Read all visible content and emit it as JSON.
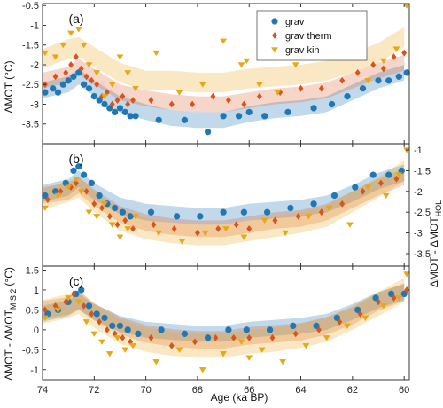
{
  "figure": {
    "xlabel_main": "Age (ka BP)",
    "ylabel_top": "ΔMOT (°C)",
    "ylabel_mid_main": "ΔMOT - ΔMOT",
    "ylabel_mid_sub": "HOL",
    "ylabel_bot_main": "ΔMOT - ΔMOT",
    "ylabel_bot_sub": "MIS 2",
    "ylabel_bot_unit": "(°C)"
  },
  "legend": [
    {
      "name": "grav",
      "color": "#1f77b4",
      "marker": "star"
    },
    {
      "name": "grav therm",
      "color": "#d9541a",
      "marker": "diamond"
    },
    {
      "name": "grav kin",
      "color": "#e6a817",
      "marker": "triangle-down"
    }
  ],
  "chart_data": [
    {
      "type": "scatter",
      "panel_label": "(a)",
      "x_axis": {
        "range": [
          74,
          59.8
        ],
        "reversed": true,
        "ticks": [
          74,
          72,
          70,
          68,
          66,
          64,
          62,
          60
        ]
      },
      "y_axis": {
        "range": [
          -4.0,
          -0.45
        ],
        "side": "left",
        "ticks": [
          -0.5,
          -1,
          -1.5,
          -2,
          -2.5,
          -3,
          -3.5
        ],
        "tick_labels": [
          "-0.5",
          "-1",
          "-1.5",
          "-2",
          "-2.5",
          "-3",
          "-3.5"
        ]
      },
      "series": [
        {
          "name": "grav",
          "color": "#1f77b4",
          "band_x": [
            74,
            73,
            72.6,
            72,
            71,
            70,
            69,
            68,
            67,
            66,
            65,
            64,
            63,
            62,
            61,
            60
          ],
          "band_center": [
            -2.65,
            -2.5,
            -2.3,
            -2.6,
            -3.0,
            -3.2,
            -3.35,
            -3.4,
            -3.4,
            -3.25,
            -3.15,
            -3.1,
            -3.0,
            -2.7,
            -2.4,
            -2.2
          ],
          "band_half": 0.2,
          "points_x": [
            73.9,
            73.6,
            73.4,
            73.2,
            73.0,
            72.8,
            72.6,
            72.4,
            72.2,
            72.0,
            71.8,
            71.6,
            71.4,
            71.2,
            71.0,
            70.8,
            70.6,
            70.4,
            69.5,
            68.5,
            67.6,
            67.0,
            66.4,
            66.0,
            65.4,
            64.5,
            63.5,
            62.8,
            62.2,
            61.6,
            61.0,
            60.6,
            60.2,
            59.9
          ],
          "points_y": [
            -2.7,
            -2.6,
            -2.7,
            -2.5,
            -2.4,
            -2.3,
            -2.2,
            -2.5,
            -2.6,
            -2.8,
            -2.9,
            -3.0,
            -3.1,
            -3.2,
            -3.1,
            -3.2,
            -3.3,
            -3.3,
            -3.4,
            -3.4,
            -3.7,
            -3.3,
            -3.3,
            -3.2,
            -3.3,
            -3.2,
            -3.1,
            -3.0,
            -2.8,
            -2.6,
            -2.4,
            -2.4,
            -2.3,
            -2.2
          ]
        },
        {
          "name": "grav therm",
          "color": "#d9541a",
          "band_x": [
            74,
            73,
            72.6,
            72,
            71,
            70,
            69,
            68,
            67,
            66,
            65,
            64,
            63,
            62,
            61,
            60
          ],
          "band_center": [
            -2.4,
            -2.25,
            -2.05,
            -2.3,
            -2.7,
            -2.85,
            -2.95,
            -3.0,
            -3.0,
            -2.9,
            -2.8,
            -2.75,
            -2.65,
            -2.4,
            -2.15,
            -1.95
          ],
          "band_half": 0.2,
          "points_x": [
            73.9,
            73.5,
            73.1,
            72.9,
            72.7,
            72.5,
            72.3,
            72.1,
            71.9,
            71.7,
            71.5,
            71.3,
            71.1,
            70.9,
            70.7,
            70.5,
            69.8,
            69.0,
            68.2,
            67.4,
            66.8,
            66.2,
            65.6,
            64.8,
            64.0,
            63.2,
            62.4,
            61.8,
            61.2,
            60.8,
            60.4,
            60.0
          ],
          "points_y": [
            -2.5,
            -2.3,
            -2.2,
            -2.0,
            -1.8,
            -2.1,
            -2.3,
            -2.4,
            -2.5,
            -2.8,
            -2.7,
            -3.0,
            -2.9,
            -2.8,
            -3.0,
            -2.9,
            -2.9,
            -3.0,
            -3.0,
            -2.8,
            -2.9,
            -3.0,
            -2.8,
            -2.7,
            -2.6,
            -2.6,
            -2.4,
            -2.2,
            -2.0,
            -2.1,
            -1.8,
            -1.7
          ]
        },
        {
          "name": "grav kin",
          "color": "#e6a817",
          "band_x": [
            74,
            73,
            72.6,
            72,
            71,
            70,
            69,
            68,
            67,
            66,
            65,
            64,
            63,
            62,
            61,
            60
          ],
          "band_center": [
            -1.85,
            -1.6,
            -1.55,
            -1.8,
            -2.2,
            -2.4,
            -2.4,
            -2.45,
            -2.45,
            -2.35,
            -2.3,
            -2.25,
            -2.15,
            -1.95,
            -1.7,
            -1.3
          ],
          "band_half": 0.25,
          "points_x": [
            73.9,
            73.5,
            73.2,
            72.9,
            72.6,
            72.4,
            72.2,
            71.9,
            71.6,
            71.3,
            71.0,
            70.7,
            70.4,
            69.6,
            68.7,
            67.8,
            67.0,
            66.3,
            66.1,
            65.6,
            64.9,
            64.2,
            63.4,
            62.7,
            62.0,
            61.4,
            60.8,
            60.3,
            59.9
          ],
          "points_y": [
            -1.7,
            -1.8,
            -1.5,
            -1.2,
            -1.1,
            -1.5,
            -2.0,
            -2.2,
            -2.8,
            -2.5,
            -1.8,
            -2.2,
            -2.6,
            -1.7,
            -2.7,
            -2.5,
            -1.4,
            -2.0,
            -1.9,
            -2.5,
            -2.7,
            -2.0,
            -1.7,
            -1.4,
            -1.6,
            -2.4,
            -1.9,
            -1.6,
            -0.5
          ]
        }
      ]
    },
    {
      "type": "scatter",
      "panel_label": "(b)",
      "x_axis": {
        "range": [
          74,
          59.8
        ],
        "reversed": true,
        "ticks": [
          74,
          72,
          70,
          68,
          66,
          64,
          62,
          60
        ]
      },
      "y_axis": {
        "range": [
          -3.8,
          -0.85
        ],
        "side": "right",
        "ticks": [
          -1,
          -1.5,
          -2,
          -2.5,
          -3,
          -3.5
        ],
        "tick_labels": [
          "-1",
          "-1.5",
          "-2",
          "-2.5",
          "-3",
          "-3.5"
        ]
      },
      "series": [
        {
          "name": "grav",
          "color": "#1f77b4",
          "band_x": [
            74,
            73,
            72.6,
            72,
            71,
            70,
            69,
            68,
            67,
            66,
            65,
            64,
            63,
            62,
            61,
            60
          ],
          "band_center": [
            -2.05,
            -1.9,
            -1.7,
            -2.0,
            -2.35,
            -2.5,
            -2.55,
            -2.6,
            -2.6,
            -2.5,
            -2.45,
            -2.4,
            -2.3,
            -2.05,
            -1.75,
            -1.55
          ],
          "band_half": 0.2,
          "points_x": [
            73.9,
            73.5,
            73.1,
            72.8,
            72.6,
            72.4,
            72.1,
            71.8,
            71.5,
            71.2,
            70.9,
            70.6,
            69.8,
            68.8,
            67.9,
            67.0,
            66.2,
            65.3,
            64.4,
            63.5,
            62.7,
            61.9,
            61.2,
            60.6,
            60.1
          ],
          "points_y": [
            -2.1,
            -2.0,
            -1.8,
            -1.5,
            -1.4,
            -1.6,
            -1.8,
            -2.1,
            -2.3,
            -2.4,
            -2.5,
            -2.6,
            -2.5,
            -2.6,
            -2.6,
            -2.5,
            -2.5,
            -2.5,
            -2.4,
            -2.3,
            -2.1,
            -1.9,
            -1.6,
            -1.6,
            -1.5
          ]
        },
        {
          "name": "grav therm",
          "color": "#d9541a",
          "band_x": [
            74,
            73,
            72.6,
            72,
            71,
            70,
            69,
            68,
            67,
            66,
            65,
            64,
            63,
            62,
            61,
            60
          ],
          "band_center": [
            -2.1,
            -2.0,
            -1.85,
            -2.15,
            -2.55,
            -2.75,
            -2.85,
            -2.9,
            -2.9,
            -2.8,
            -2.7,
            -2.65,
            -2.5,
            -2.2,
            -1.9,
            -1.65
          ],
          "band_half": 0.2,
          "points_x": [
            73.8,
            73.3,
            72.9,
            72.7,
            72.3,
            72.0,
            71.7,
            71.4,
            71.1,
            70.8,
            70.5,
            69.7,
            68.9,
            68.0,
            67.2,
            66.5,
            66.0,
            65.0,
            64.1,
            63.2,
            62.4,
            61.6,
            60.9,
            60.3
          ],
          "points_y": [
            -2.2,
            -2.0,
            -1.9,
            -1.8,
            -2.0,
            -2.3,
            -2.4,
            -2.6,
            -2.8,
            -2.7,
            -2.9,
            -2.8,
            -2.9,
            -3.0,
            -2.9,
            -2.8,
            -2.9,
            -2.7,
            -2.6,
            -2.5,
            -2.3,
            -2.0,
            -1.8,
            -1.7
          ]
        },
        {
          "name": "grav kin",
          "color": "#e6a817",
          "band_x": [
            74,
            73,
            72.6,
            72,
            71,
            70,
            69,
            68,
            67,
            66,
            65,
            64,
            63,
            62,
            61,
            60
          ],
          "band_center": [
            -2.2,
            -2.0,
            -1.9,
            -2.25,
            -2.7,
            -2.9,
            -3.0,
            -3.05,
            -3.05,
            -2.95,
            -2.85,
            -2.75,
            -2.6,
            -2.25,
            -1.9,
            -1.5
          ],
          "band_half": 0.25,
          "points_x": [
            73.9,
            73.4,
            73.0,
            72.7,
            72.5,
            72.2,
            71.9,
            71.6,
            71.3,
            71.0,
            70.7,
            70.4,
            69.5,
            68.6,
            67.7,
            66.9,
            66.2,
            65.4,
            64.6,
            63.7,
            62.9,
            62.1,
            61.4,
            60.7,
            60.2,
            59.9
          ],
          "points_y": [
            -2.4,
            -2.1,
            -1.9,
            -1.7,
            -2.0,
            -2.5,
            -2.6,
            -2.3,
            -2.8,
            -3.1,
            -2.9,
            -2.6,
            -3.0,
            -3.2,
            -3.0,
            -2.9,
            -3.1,
            -2.7,
            -3.0,
            -2.6,
            -2.4,
            -2.8,
            -1.9,
            -2.1,
            -1.6,
            -1.0
          ]
        }
      ]
    },
    {
      "type": "scatter",
      "panel_label": "(c)",
      "x_axis": {
        "range": [
          74,
          59.8
        ],
        "reversed": true,
        "ticks": [
          74,
          72,
          70,
          68,
          66,
          64,
          62,
          60
        ]
      },
      "y_axis": {
        "range": [
          -1.25,
          1.6
        ],
        "side": "left",
        "ticks": [
          1.5,
          1,
          0.5,
          0,
          -0.5,
          -1
        ],
        "tick_labels": [
          "1.5",
          "1",
          "0.5",
          "0",
          "-0.5",
          "-1"
        ]
      },
      "series": [
        {
          "name": "grav",
          "color": "#1f77b4",
          "band_x": [
            74,
            73,
            72.6,
            72,
            71,
            70,
            69,
            68,
            67,
            66,
            65,
            64,
            63,
            62,
            61,
            60
          ],
          "band_center": [
            0.4,
            0.55,
            0.7,
            0.45,
            0.15,
            0.0,
            -0.05,
            -0.1,
            -0.1,
            0.0,
            0.05,
            0.1,
            0.2,
            0.45,
            0.75,
            0.95
          ],
          "band_half": 0.2,
          "points_x": [
            73.8,
            73.4,
            73.0,
            72.7,
            72.5,
            72.2,
            71.9,
            71.6,
            71.3,
            71.0,
            70.7,
            70.3,
            69.4,
            68.5,
            67.6,
            66.8,
            66.1,
            65.2,
            64.3,
            63.4,
            62.6,
            61.8,
            61.1,
            60.5,
            60.0
          ],
          "points_y": [
            0.4,
            0.5,
            0.7,
            0.9,
            1.0,
            0.6,
            0.4,
            0.3,
            0.1,
            0.1,
            0.0,
            -0.1,
            0.0,
            -0.1,
            -0.2,
            0.0,
            0.0,
            0.0,
            0.1,
            0.1,
            0.3,
            0.5,
            0.8,
            0.9,
            0.9
          ]
        },
        {
          "name": "grav therm",
          "color": "#d9541a",
          "band_x": [
            74,
            73,
            72.6,
            72,
            71,
            70,
            69,
            68,
            67,
            66,
            65,
            64,
            63,
            62,
            61,
            60
          ],
          "band_center": [
            0.5,
            0.6,
            0.75,
            0.45,
            0.1,
            -0.1,
            -0.2,
            -0.25,
            -0.25,
            -0.15,
            -0.1,
            -0.05,
            0.1,
            0.35,
            0.7,
            0.95
          ],
          "band_half": 0.22,
          "points_x": [
            73.9,
            73.5,
            73.1,
            72.8,
            72.4,
            72.1,
            71.8,
            71.5,
            71.2,
            70.9,
            70.6,
            69.8,
            69.0,
            68.1,
            67.3,
            66.6,
            66.0,
            65.1,
            64.2,
            63.3,
            62.5,
            61.7,
            61.0,
            60.4,
            59.9
          ],
          "points_y": [
            0.5,
            0.6,
            0.7,
            0.9,
            0.6,
            0.4,
            0.2,
            0.0,
            -0.1,
            -0.2,
            -0.3,
            -0.2,
            -0.4,
            -0.3,
            -0.2,
            -0.2,
            -0.2,
            -0.2,
            -0.1,
            0.0,
            0.2,
            0.4,
            0.7,
            0.8,
            1.0
          ]
        },
        {
          "name": "grav kin",
          "color": "#e6a817",
          "band_x": [
            74,
            73,
            72.6,
            72,
            71,
            70,
            69,
            68,
            67,
            66,
            65,
            64,
            63,
            62,
            61,
            60
          ],
          "band_center": [
            0.45,
            0.6,
            0.7,
            0.35,
            -0.05,
            -0.25,
            -0.35,
            -0.4,
            -0.4,
            -0.3,
            -0.25,
            -0.15,
            0.0,
            0.3,
            0.65,
            1.0
          ],
          "band_half": 0.3,
          "points_x": [
            73.9,
            73.4,
            73.0,
            72.6,
            72.3,
            72.0,
            71.7,
            71.4,
            71.1,
            70.8,
            70.5,
            69.6,
            68.7,
            67.8,
            67.0,
            66.3,
            66.0,
            65.5,
            64.7,
            63.8,
            63.0,
            62.2,
            61.5,
            60.8,
            60.2,
            59.9
          ],
          "points_y": [
            0.3,
            0.5,
            0.8,
            0.7,
            0.2,
            -0.1,
            -0.3,
            -0.6,
            -0.2,
            -0.5,
            -0.4,
            -0.8,
            -0.5,
            -1.0,
            -0.6,
            -0.3,
            -0.7,
            -0.5,
            -0.8,
            -0.4,
            -0.2,
            0.1,
            0.3,
            0.6,
            0.8,
            1.4
          ]
        }
      ]
    }
  ]
}
